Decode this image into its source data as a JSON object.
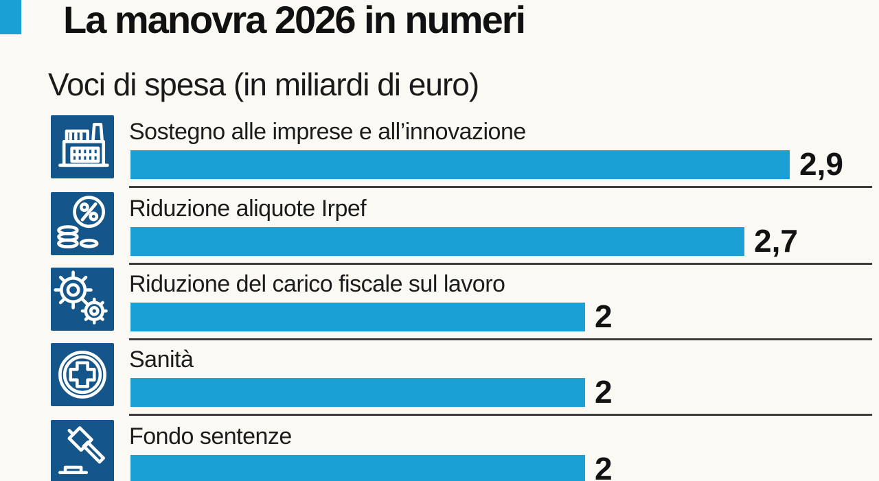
{
  "page": {
    "background_color": "#FBF9F3",
    "accent_color": "#1BA0D6",
    "icon_bg_color": "#15568A",
    "divider_color": "#3C3C3C",
    "text_color": "#141414"
  },
  "header": {
    "title": "La manovra 2026 in numeri",
    "subtitle": "Voci di spesa (in miliardi di euro)"
  },
  "rows": [
    {
      "icon": "factory-icon",
      "label": "Sostegno alle imprese e all’innovazione",
      "value": "2,9"
    },
    {
      "icon": "percent-coins-icon",
      "label": "Riduzione aliquote Irpef",
      "value": "2,7"
    },
    {
      "icon": "gears-icon",
      "label": "Riduzione del carico fiscale sul lavoro",
      "value": "2"
    },
    {
      "icon": "health-cross-icon",
      "label": "Sanità",
      "value": "2"
    },
    {
      "icon": "gavel-icon",
      "label": "Fondo sentenze",
      "value": "2"
    }
  ],
  "chart_data": {
    "type": "bar",
    "orientation": "horizontal",
    "title": "La manovra 2026 in numeri",
    "subtitle": "Voci di spesa (in miliardi di euro)",
    "unit": "miliardi di euro",
    "categories": [
      "Sostegno alle imprese e all’innovazione",
      "Riduzione aliquote Irpef",
      "Riduzione del carico fiscale sul lavoro",
      "Sanità",
      "Fondo sentenze"
    ],
    "values": [
      2.9,
      2.7,
      2,
      2,
      2
    ],
    "value_labels": [
      "2,9",
      "2,7",
      "2",
      "2",
      "2"
    ],
    "xlim": [
      0,
      3.3
    ],
    "grid": false,
    "legend": false,
    "bar_color": "#1BA0D6"
  }
}
